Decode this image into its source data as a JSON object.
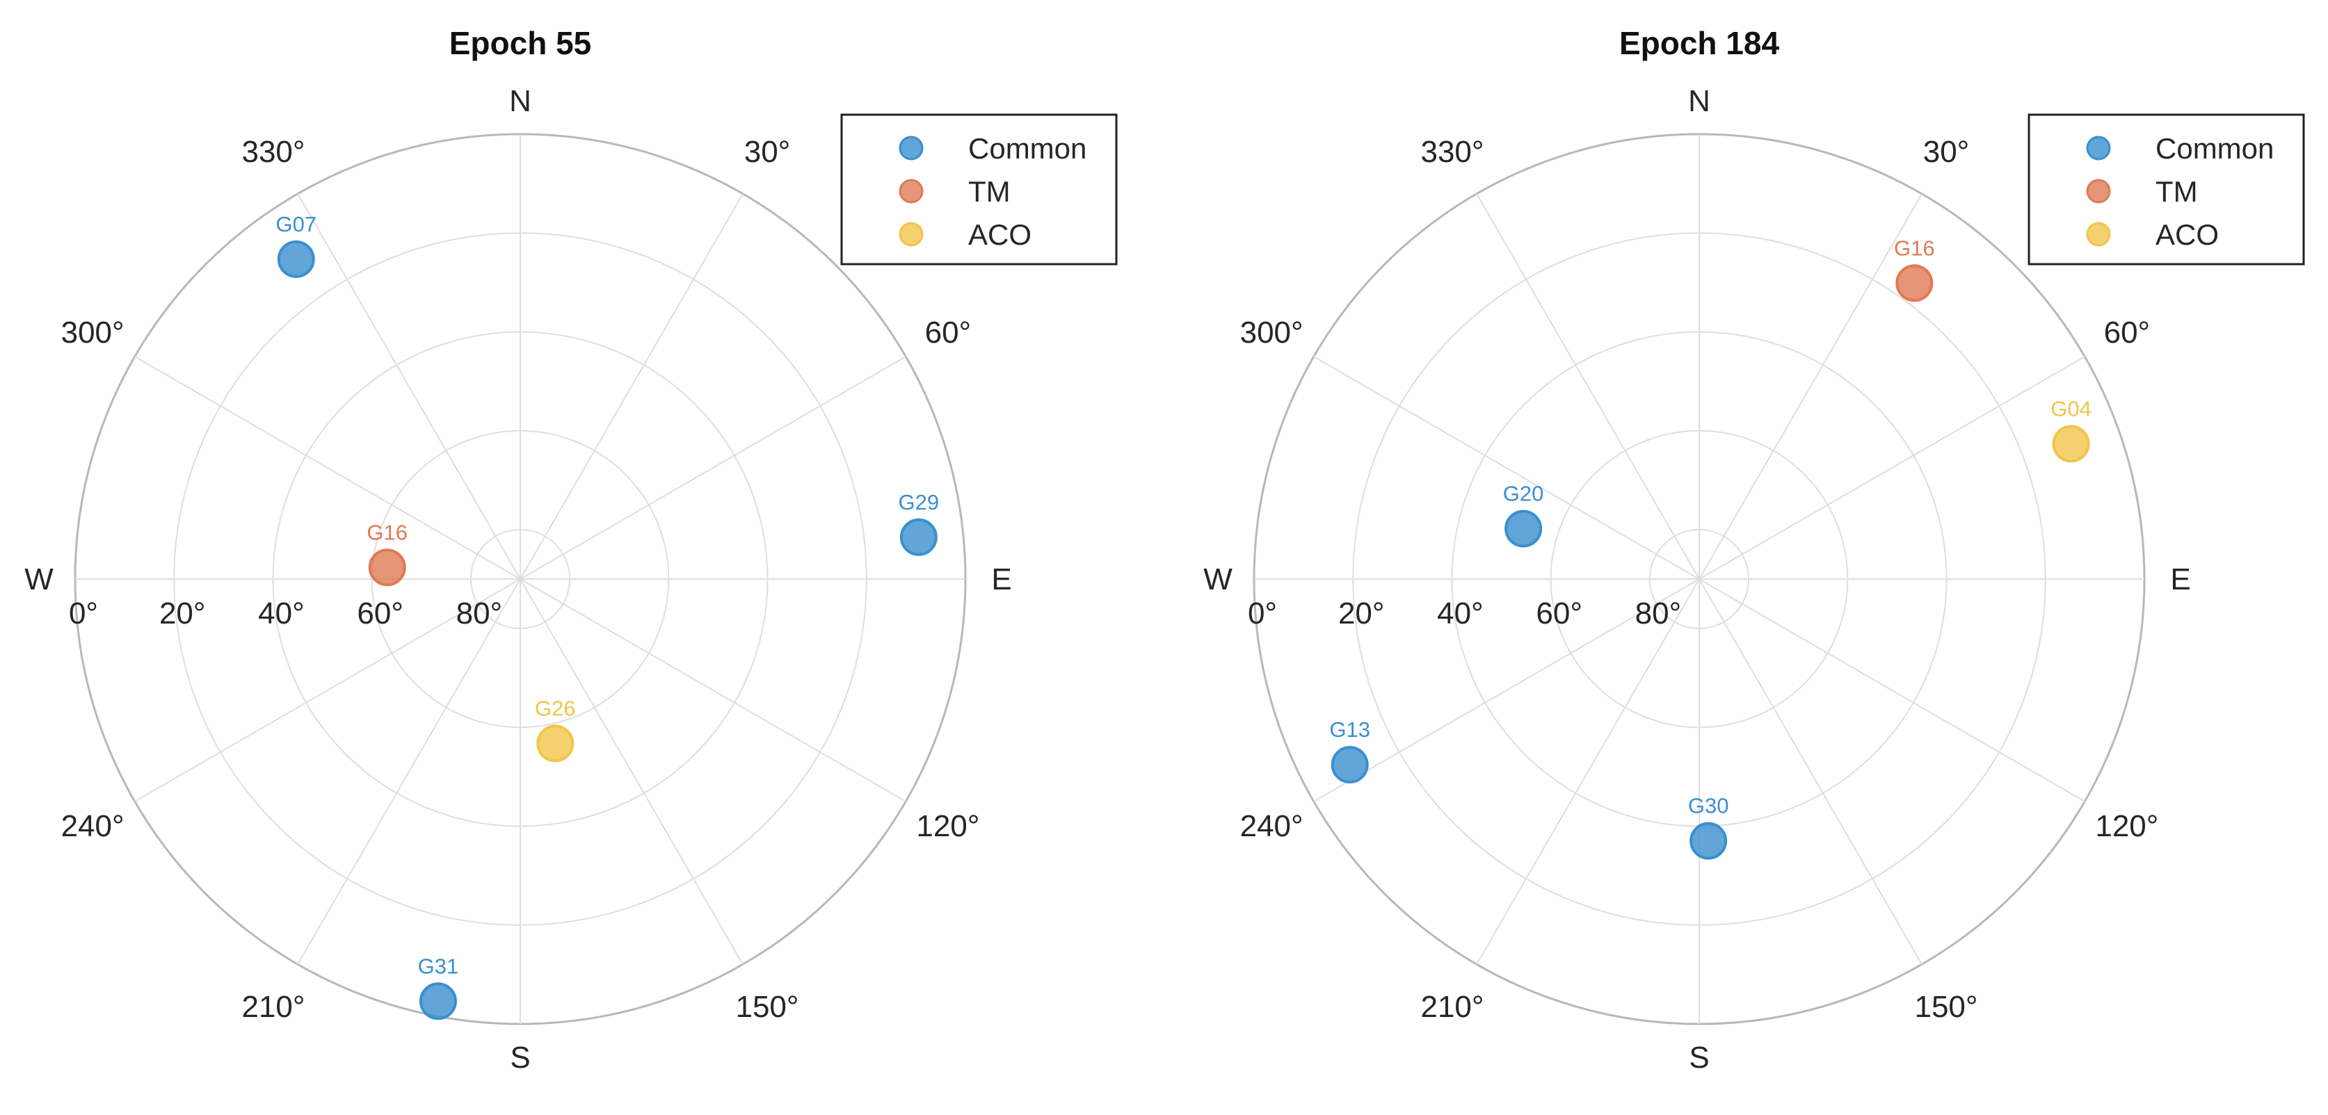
{
  "chart_data": [
    {
      "type": "scatter",
      "subtype": "polar-skyplot",
      "title": "Epoch 55",
      "azimuth_ticks": [
        "30°",
        "60°",
        "120°",
        "150°",
        "210°",
        "240°",
        "300°",
        "330°"
      ],
      "cardinal_labels": [
        "N",
        "E",
        "S",
        "W"
      ],
      "elevation_ticks": [
        "0°",
        "20°",
        "40°",
        "60°",
        "80°"
      ],
      "elevation_range": [
        0,
        90
      ],
      "grid": true,
      "legend": {
        "placement": "top-right",
        "entries": [
          "Common",
          "TM",
          "ACO"
        ]
      },
      "series": [
        {
          "name": "Common",
          "color": "#3a8fd0",
          "points": [
            {
              "label": "G07",
              "azimuth": 325,
              "elevation": 11
            },
            {
              "label": "G29",
              "azimuth": 84,
              "elevation": 9
            },
            {
              "label": "G31",
              "azimuth": 191,
              "elevation": 3
            }
          ]
        },
        {
          "name": "TM",
          "color": "#e07a54",
          "points": [
            {
              "label": "G16",
              "azimuth": 275,
              "elevation": 63
            }
          ]
        },
        {
          "name": "ACO",
          "color": "#f1c44a",
          "points": [
            {
              "label": "G26",
              "azimuth": 168,
              "elevation": 56
            }
          ]
        }
      ]
    },
    {
      "type": "scatter",
      "subtype": "polar-skyplot",
      "title": "Epoch 184",
      "azimuth_ticks": [
        "30°",
        "60°",
        "120°",
        "150°",
        "210°",
        "240°",
        "300°",
        "330°"
      ],
      "cardinal_labels": [
        "N",
        "E",
        "S",
        "W"
      ],
      "elevation_ticks": [
        "0°",
        "20°",
        "40°",
        "60°",
        "80°"
      ],
      "elevation_range": [
        0,
        90
      ],
      "grid": true,
      "legend": {
        "placement": "top-right",
        "entries": [
          "Common",
          "TM",
          "ACO"
        ]
      },
      "series": [
        {
          "name": "Common",
          "color": "#3a8fd0",
          "points": [
            {
              "label": "G20",
              "azimuth": 286,
              "elevation": 53
            },
            {
              "label": "G13",
              "azimuth": 242,
              "elevation": 10
            },
            {
              "label": "G30",
              "azimuth": 178,
              "elevation": 37
            }
          ]
        },
        {
          "name": "TM",
          "color": "#e07a54",
          "points": [
            {
              "label": "G16",
              "azimuth": 36,
              "elevation": 16
            }
          ]
        },
        {
          "name": "ACO",
          "color": "#f1c44a",
          "points": [
            {
              "label": "G04",
              "azimuth": 70,
              "elevation": 10
            }
          ]
        }
      ]
    }
  ]
}
